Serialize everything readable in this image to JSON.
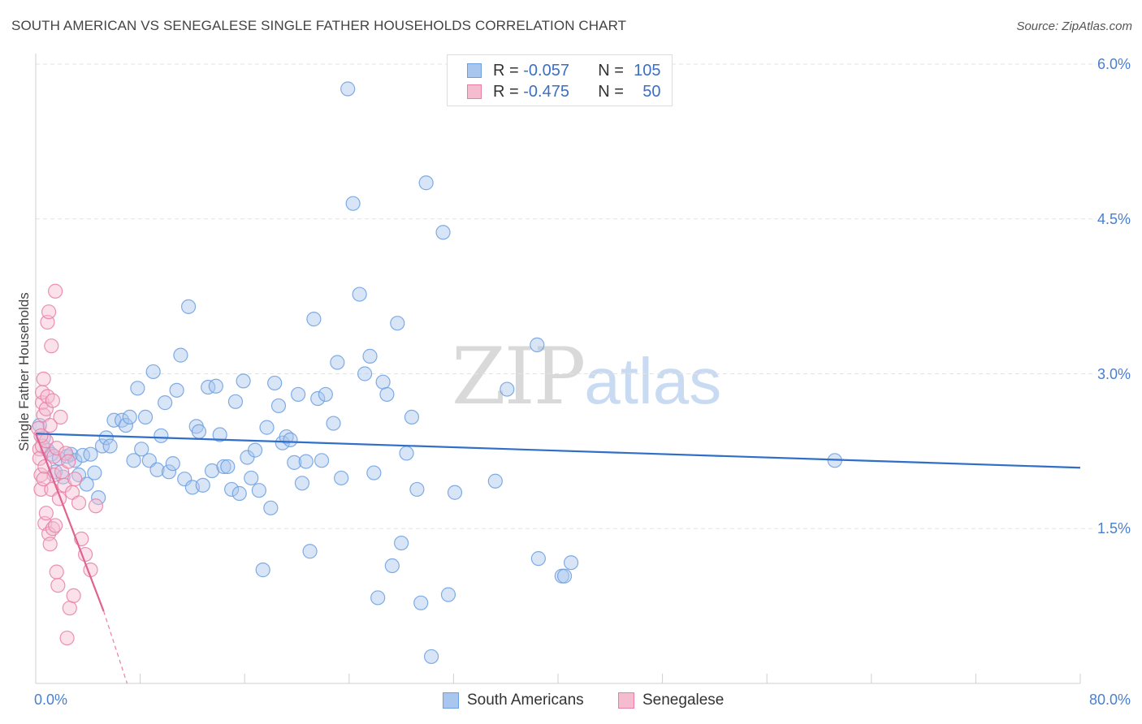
{
  "chart_data": {
    "type": "scatter",
    "title": "SOUTH AMERICAN VS SENEGALESE SINGLE FATHER HOUSEHOLDS CORRELATION CHART",
    "source": "Source: ZipAtlas.com",
    "xlabel": "",
    "ylabel": "Single Father Households",
    "xlim": [
      0,
      80
    ],
    "ylim": [
      0,
      6.3
    ],
    "x_tick_labels": [
      "0.0%",
      "80.0%"
    ],
    "y_ticks": [
      {
        "value": 1.5,
        "label": "1.5%"
      },
      {
        "value": 3.0,
        "label": "3.0%"
      },
      {
        "value": 4.5,
        "label": "4.5%"
      },
      {
        "value": 6.0,
        "label": "6.0%"
      }
    ],
    "watermark": {
      "zip": "ZIP",
      "atlas": "atlas"
    },
    "legend": [
      {
        "r_label": "R =",
        "r_value": "-0.057",
        "n_label": "N =",
        "n_value": "105"
      },
      {
        "r_label": "R =",
        "r_value": "-0.475",
        "n_label": "N =",
        "n_value": "50"
      }
    ],
    "series": [
      {
        "name": "South Americans",
        "color": "#6b9fe0",
        "fill": "#a9c6ee",
        "trend": {
          "x0": 0,
          "y0": 2.42,
          "x1": 80,
          "y1": 2.09
        },
        "points": [
          [
            0.3,
            2.5
          ],
          [
            0.6,
            2.38
          ],
          [
            0.9,
            2.26
          ],
          [
            1.2,
            2.22
          ],
          [
            1.5,
            2.05
          ],
          [
            1.8,
            2.18
          ],
          [
            2.1,
            2.0
          ],
          [
            2.4,
            2.2
          ],
          [
            2.7,
            2.22
          ],
          [
            3.0,
            2.16
          ],
          [
            3.3,
            2.02
          ],
          [
            3.6,
            2.21
          ],
          [
            3.9,
            1.93
          ],
          [
            4.2,
            2.22
          ],
          [
            4.5,
            2.04
          ],
          [
            4.8,
            1.8
          ],
          [
            5.1,
            2.3
          ],
          [
            5.4,
            2.38
          ],
          [
            5.7,
            2.3
          ],
          [
            6.0,
            2.55
          ],
          [
            6.6,
            2.55
          ],
          [
            6.9,
            2.5
          ],
          [
            7.2,
            2.58
          ],
          [
            7.5,
            2.16
          ],
          [
            7.8,
            2.86
          ],
          [
            8.1,
            2.27
          ],
          [
            8.4,
            2.58
          ],
          [
            8.7,
            2.16
          ],
          [
            9.0,
            3.02
          ],
          [
            9.3,
            2.07
          ],
          [
            9.6,
            2.4
          ],
          [
            9.9,
            2.72
          ],
          [
            10.2,
            2.05
          ],
          [
            10.5,
            2.13
          ],
          [
            10.8,
            2.84
          ],
          [
            11.1,
            3.18
          ],
          [
            11.4,
            1.98
          ],
          [
            11.7,
            3.65
          ],
          [
            12.0,
            1.9
          ],
          [
            12.3,
            2.49
          ],
          [
            12.5,
            2.44
          ],
          [
            12.8,
            1.92
          ],
          [
            13.2,
            2.87
          ],
          [
            13.5,
            2.06
          ],
          [
            13.8,
            2.88
          ],
          [
            14.1,
            2.41
          ],
          [
            14.4,
            2.1
          ],
          [
            14.7,
            2.1
          ],
          [
            15.0,
            1.88
          ],
          [
            15.3,
            2.73
          ],
          [
            15.6,
            1.84
          ],
          [
            15.9,
            2.93
          ],
          [
            16.2,
            2.19
          ],
          [
            16.5,
            1.99
          ],
          [
            16.8,
            2.26
          ],
          [
            17.1,
            1.87
          ],
          [
            17.4,
            1.1
          ],
          [
            17.7,
            2.48
          ],
          [
            18.0,
            1.7
          ],
          [
            18.3,
            2.91
          ],
          [
            18.6,
            2.69
          ],
          [
            18.9,
            2.33
          ],
          [
            19.2,
            2.39
          ],
          [
            19.5,
            2.36
          ],
          [
            19.8,
            2.14
          ],
          [
            20.1,
            2.8
          ],
          [
            20.4,
            1.94
          ],
          [
            20.7,
            2.15
          ],
          [
            21.0,
            1.28
          ],
          [
            21.3,
            3.53
          ],
          [
            21.6,
            2.76
          ],
          [
            21.9,
            2.16
          ],
          [
            22.2,
            2.8
          ],
          [
            22.8,
            2.52
          ],
          [
            23.1,
            3.11
          ],
          [
            23.4,
            1.99
          ],
          [
            23.9,
            5.76
          ],
          [
            24.3,
            4.65
          ],
          [
            24.8,
            3.77
          ],
          [
            25.2,
            3.0
          ],
          [
            25.6,
            3.17
          ],
          [
            25.9,
            2.04
          ],
          [
            26.2,
            0.83
          ],
          [
            26.6,
            2.92
          ],
          [
            26.9,
            2.8
          ],
          [
            27.3,
            1.14
          ],
          [
            27.7,
            3.49
          ],
          [
            28.0,
            1.36
          ],
          [
            28.4,
            2.23
          ],
          [
            28.8,
            2.58
          ],
          [
            29.2,
            1.88
          ],
          [
            29.5,
            0.78
          ],
          [
            29.9,
            4.85
          ],
          [
            30.3,
            0.26
          ],
          [
            31.2,
            4.37
          ],
          [
            31.6,
            0.86
          ],
          [
            32.1,
            1.85
          ],
          [
            35.2,
            1.96
          ],
          [
            36.1,
            2.85
          ],
          [
            38.4,
            3.28
          ],
          [
            38.5,
            1.21
          ],
          [
            40.3,
            1.04
          ],
          [
            40.5,
            1.04
          ],
          [
            41.0,
            1.17
          ],
          [
            61.2,
            2.16
          ]
        ]
      },
      {
        "name": "Senegalese",
        "color": "#e87fa6",
        "fill": "#f5bcd0",
        "trend": {
          "x0": 0,
          "y0": 2.42,
          "x1": 5.2,
          "y1": 0.7,
          "dash_x1": 7.0,
          "dash_y1": 0.0
        },
        "points": [
          [
            0.2,
            2.47
          ],
          [
            0.3,
            2.27
          ],
          [
            0.3,
            2.18
          ],
          [
            0.4,
            2.02
          ],
          [
            0.4,
            1.88
          ],
          [
            0.5,
            2.3
          ],
          [
            0.5,
            2.72
          ],
          [
            0.5,
            2.82
          ],
          [
            0.6,
            2.95
          ],
          [
            0.6,
            2.6
          ],
          [
            0.7,
            1.55
          ],
          [
            0.7,
            2.1
          ],
          [
            0.8,
            1.65
          ],
          [
            0.8,
            2.35
          ],
          [
            0.8,
            2.66
          ],
          [
            0.9,
            3.5
          ],
          [
            0.9,
            2.78
          ],
          [
            1.0,
            3.6
          ],
          [
            1.0,
            1.45
          ],
          [
            1.1,
            2.5
          ],
          [
            1.1,
            1.35
          ],
          [
            1.2,
            3.27
          ],
          [
            1.2,
            1.88
          ],
          [
            1.3,
            2.74
          ],
          [
            1.3,
            1.5
          ],
          [
            1.4,
            2.2
          ],
          [
            1.4,
            2.02
          ],
          [
            1.5,
            3.8
          ],
          [
            1.5,
            1.53
          ],
          [
            1.6,
            1.08
          ],
          [
            1.6,
            2.28
          ],
          [
            1.7,
            0.95
          ],
          [
            1.8,
            1.79
          ],
          [
            1.9,
            2.58
          ],
          [
            2.0,
            2.05
          ],
          [
            2.2,
            1.92
          ],
          [
            2.3,
            2.23
          ],
          [
            2.4,
            0.44
          ],
          [
            2.5,
            2.15
          ],
          [
            2.6,
            0.73
          ],
          [
            2.8,
            1.85
          ],
          [
            2.9,
            0.85
          ],
          [
            3.0,
            1.98
          ],
          [
            3.3,
            1.75
          ],
          [
            3.5,
            1.4
          ],
          [
            3.8,
            1.25
          ],
          [
            4.2,
            1.1
          ],
          [
            4.6,
            1.72
          ],
          [
            0.4,
            2.4
          ],
          [
            0.6,
            1.98
          ]
        ]
      }
    ]
  }
}
